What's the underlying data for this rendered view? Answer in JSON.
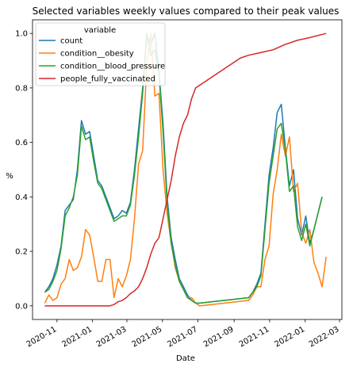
{
  "chart_data": {
    "type": "line",
    "title": "Selected variables weekly values compared to their peak values",
    "xlabel": "Date",
    "ylabel": "%",
    "xlim": [
      "2020-09-20",
      "2022-03-05"
    ],
    "ylim": [
      -0.05,
      1.05
    ],
    "grid": false,
    "legend": {
      "title": "variable",
      "placement": "top-left"
    },
    "xticks": [
      "2020-11",
      "2021-01",
      "2021-03",
      "2021-05",
      "2021-07",
      "2021-09",
      "2021-11",
      "2022-01",
      "2022-03"
    ],
    "yticks": [
      "0.0",
      "0.2",
      "0.4",
      "0.6",
      "0.8",
      "1.0"
    ],
    "series": [
      {
        "name": "count",
        "color": "#1f77b4",
        "points": [
          [
            "2020-10-11",
            0.05
          ],
          [
            "2020-10-18",
            0.07
          ],
          [
            "2020-10-25",
            0.1
          ],
          [
            "2020-11-01",
            0.15
          ],
          [
            "2020-11-08",
            0.22
          ],
          [
            "2020-11-15",
            0.35
          ],
          [
            "2020-11-22",
            0.37
          ],
          [
            "2020-11-29",
            0.39
          ],
          [
            "2020-12-06",
            0.5
          ],
          [
            "2020-12-13",
            0.68
          ],
          [
            "2020-12-20",
            0.63
          ],
          [
            "2020-12-27",
            0.64
          ],
          [
            "2021-01-03",
            0.55
          ],
          [
            "2021-01-10",
            0.46
          ],
          [
            "2021-01-17",
            0.44
          ],
          [
            "2021-01-24",
            0.4
          ],
          [
            "2021-01-31",
            0.36
          ],
          [
            "2021-02-07",
            0.32
          ],
          [
            "2021-02-14",
            0.33
          ],
          [
            "2021-02-21",
            0.35
          ],
          [
            "2021-02-28",
            0.34
          ],
          [
            "2021-03-07",
            0.38
          ],
          [
            "2021-03-14",
            0.5
          ],
          [
            "2021-03-21",
            0.65
          ],
          [
            "2021-03-28",
            0.8
          ],
          [
            "2021-04-04",
            0.99
          ],
          [
            "2021-04-11",
            0.96
          ],
          [
            "2021-04-18",
            1.0
          ],
          [
            "2021-04-25",
            0.86
          ],
          [
            "2021-05-02",
            0.67
          ],
          [
            "2021-05-09",
            0.4
          ],
          [
            "2021-05-16",
            0.25
          ],
          [
            "2021-05-23",
            0.17
          ],
          [
            "2021-05-30",
            0.1
          ],
          [
            "2021-06-06",
            0.07
          ],
          [
            "2021-06-13",
            0.04
          ],
          [
            "2021-06-20",
            0.02
          ],
          [
            "2021-06-27",
            0.01
          ],
          [
            "2021-07-04",
            0.01
          ],
          [
            "2021-09-26",
            0.03
          ],
          [
            "2021-10-03",
            0.05
          ],
          [
            "2021-10-10",
            0.08
          ],
          [
            "2021-10-17",
            0.12
          ],
          [
            "2021-10-24",
            0.3
          ],
          [
            "2021-10-31",
            0.48
          ],
          [
            "2021-11-07",
            0.58
          ],
          [
            "2021-11-14",
            0.71
          ],
          [
            "2021-11-21",
            0.74
          ],
          [
            "2021-11-28",
            0.58
          ],
          [
            "2021-12-05",
            0.44
          ],
          [
            "2021-12-12",
            0.5
          ],
          [
            "2021-12-19",
            0.32
          ],
          [
            "2021-12-26",
            0.26
          ],
          [
            "2022-01-02",
            0.33
          ],
          [
            "2022-01-09",
            0.23
          ],
          [
            "2022-01-16",
            0.28
          ],
          [
            "2022-01-23",
            0.34
          ],
          [
            "2022-01-30",
            0.4
          ]
        ]
      },
      {
        "name": "condition__obesity",
        "color": "#ff7f0e",
        "points": [
          [
            "2020-10-11",
            0.01
          ],
          [
            "2020-10-18",
            0.04
          ],
          [
            "2020-10-25",
            0.02
          ],
          [
            "2020-11-01",
            0.03
          ],
          [
            "2020-11-08",
            0.08
          ],
          [
            "2020-11-15",
            0.1
          ],
          [
            "2020-11-22",
            0.17
          ],
          [
            "2020-11-29",
            0.13
          ],
          [
            "2020-12-06",
            0.14
          ],
          [
            "2020-12-13",
            0.18
          ],
          [
            "2020-12-20",
            0.28
          ],
          [
            "2020-12-27",
            0.26
          ],
          [
            "2021-01-03",
            0.18
          ],
          [
            "2021-01-10",
            0.09
          ],
          [
            "2021-01-17",
            0.09
          ],
          [
            "2021-01-24",
            0.17
          ],
          [
            "2021-01-31",
            0.17
          ],
          [
            "2021-02-07",
            0.03
          ],
          [
            "2021-02-14",
            0.1
          ],
          [
            "2021-02-21",
            0.07
          ],
          [
            "2021-02-28",
            0.11
          ],
          [
            "2021-03-07",
            0.17
          ],
          [
            "2021-03-14",
            0.32
          ],
          [
            "2021-03-21",
            0.52
          ],
          [
            "2021-03-28",
            0.57
          ],
          [
            "2021-04-04",
            0.88
          ],
          [
            "2021-04-11",
            1.0
          ],
          [
            "2021-04-18",
            0.77
          ],
          [
            "2021-04-25",
            0.78
          ],
          [
            "2021-05-02",
            0.5
          ],
          [
            "2021-05-09",
            0.34
          ],
          [
            "2021-05-16",
            0.23
          ],
          [
            "2021-05-23",
            0.14
          ],
          [
            "2021-05-30",
            0.09
          ],
          [
            "2021-06-06",
            0.06
          ],
          [
            "2021-06-13",
            0.03
          ],
          [
            "2021-06-20",
            0.03
          ],
          [
            "2021-06-27",
            0.01
          ],
          [
            "2021-07-04",
            0.0
          ],
          [
            "2021-09-26",
            0.02
          ],
          [
            "2021-10-03",
            0.04
          ],
          [
            "2021-10-10",
            0.07
          ],
          [
            "2021-10-17",
            0.07
          ],
          [
            "2021-10-24",
            0.17
          ],
          [
            "2021-10-31",
            0.22
          ],
          [
            "2021-11-07",
            0.41
          ],
          [
            "2021-11-14",
            0.5
          ],
          [
            "2021-11-21",
            0.63
          ],
          [
            "2021-11-28",
            0.55
          ],
          [
            "2021-12-05",
            0.62
          ],
          [
            "2021-12-12",
            0.42
          ],
          [
            "2021-12-19",
            0.45
          ],
          [
            "2021-12-26",
            0.27
          ],
          [
            "2022-01-02",
            0.23
          ],
          [
            "2022-01-09",
            0.28
          ],
          [
            "2022-01-16",
            0.16
          ],
          [
            "2022-01-23",
            0.12
          ],
          [
            "2022-01-30",
            0.07
          ],
          [
            "2022-02-06",
            0.18
          ]
        ]
      },
      {
        "name": "condition__blood_pressure",
        "color": "#2ca02c",
        "points": [
          [
            "2020-10-11",
            0.05
          ],
          [
            "2020-10-18",
            0.06
          ],
          [
            "2020-10-25",
            0.09
          ],
          [
            "2020-11-01",
            0.13
          ],
          [
            "2020-11-08",
            0.21
          ],
          [
            "2020-11-15",
            0.33
          ],
          [
            "2020-11-22",
            0.36
          ],
          [
            "2020-11-29",
            0.4
          ],
          [
            "2020-12-06",
            0.48
          ],
          [
            "2020-12-13",
            0.66
          ],
          [
            "2020-12-20",
            0.61
          ],
          [
            "2020-12-27",
            0.62
          ],
          [
            "2021-01-03",
            0.53
          ],
          [
            "2021-01-10",
            0.45
          ],
          [
            "2021-01-17",
            0.43
          ],
          [
            "2021-01-24",
            0.39
          ],
          [
            "2021-01-31",
            0.35
          ],
          [
            "2021-02-07",
            0.31
          ],
          [
            "2021-02-14",
            0.32
          ],
          [
            "2021-02-21",
            0.33
          ],
          [
            "2021-02-28",
            0.33
          ],
          [
            "2021-03-07",
            0.37
          ],
          [
            "2021-03-14",
            0.48
          ],
          [
            "2021-03-21",
            0.62
          ],
          [
            "2021-03-28",
            0.78
          ],
          [
            "2021-04-04",
            1.0
          ],
          [
            "2021-04-11",
            0.92
          ],
          [
            "2021-04-18",
            0.94
          ],
          [
            "2021-04-25",
            0.85
          ],
          [
            "2021-05-02",
            0.64
          ],
          [
            "2021-05-09",
            0.38
          ],
          [
            "2021-05-16",
            0.23
          ],
          [
            "2021-05-23",
            0.15
          ],
          [
            "2021-05-30",
            0.09
          ],
          [
            "2021-06-06",
            0.06
          ],
          [
            "2021-06-13",
            0.03
          ],
          [
            "2021-06-20",
            0.02
          ],
          [
            "2021-06-27",
            0.01
          ],
          [
            "2021-07-04",
            0.01
          ],
          [
            "2021-09-26",
            0.03
          ],
          [
            "2021-10-03",
            0.05
          ],
          [
            "2021-10-10",
            0.07
          ],
          [
            "2021-10-17",
            0.11
          ],
          [
            "2021-10-24",
            0.28
          ],
          [
            "2021-10-31",
            0.45
          ],
          [
            "2021-11-07",
            0.55
          ],
          [
            "2021-11-14",
            0.65
          ],
          [
            "2021-11-21",
            0.67
          ],
          [
            "2021-11-28",
            0.57
          ],
          [
            "2021-12-05",
            0.42
          ],
          [
            "2021-12-12",
            0.44
          ],
          [
            "2021-12-19",
            0.29
          ],
          [
            "2021-12-26",
            0.24
          ],
          [
            "2022-01-02",
            0.3
          ],
          [
            "2022-01-09",
            0.22
          ],
          [
            "2022-01-16",
            0.28
          ],
          [
            "2022-01-23",
            0.34
          ],
          [
            "2022-01-30",
            0.4
          ]
        ]
      },
      {
        "name": "people_fully_vaccinated",
        "color": "#d62728",
        "points": [
          [
            "2020-10-11",
            0.0
          ],
          [
            "2020-12-27",
            0.0
          ],
          [
            "2021-01-17",
            0.0
          ],
          [
            "2021-01-31",
            0.0
          ],
          [
            "2021-02-07",
            0.005
          ],
          [
            "2021-02-14",
            0.015
          ],
          [
            "2021-02-21",
            0.02
          ],
          [
            "2021-02-28",
            0.03
          ],
          [
            "2021-03-07",
            0.045
          ],
          [
            "2021-03-14",
            0.055
          ],
          [
            "2021-03-21",
            0.07
          ],
          [
            "2021-03-28",
            0.1
          ],
          [
            "2021-04-04",
            0.14
          ],
          [
            "2021-04-11",
            0.19
          ],
          [
            "2021-04-18",
            0.23
          ],
          [
            "2021-04-25",
            0.25
          ],
          [
            "2021-05-02",
            0.32
          ],
          [
            "2021-05-09",
            0.39
          ],
          [
            "2021-05-16",
            0.46
          ],
          [
            "2021-05-23",
            0.55
          ],
          [
            "2021-05-30",
            0.62
          ],
          [
            "2021-06-06",
            0.67
          ],
          [
            "2021-06-13",
            0.7
          ],
          [
            "2021-06-20",
            0.76
          ],
          [
            "2021-06-27",
            0.8
          ],
          [
            "2021-07-11",
            0.82
          ],
          [
            "2021-08-01",
            0.85
          ],
          [
            "2021-08-22",
            0.88
          ],
          [
            "2021-09-12",
            0.91
          ],
          [
            "2021-09-26",
            0.92
          ],
          [
            "2021-10-17",
            0.93
          ],
          [
            "2021-11-07",
            0.94
          ],
          [
            "2021-11-28",
            0.96
          ],
          [
            "2021-12-19",
            0.975
          ],
          [
            "2022-01-09",
            0.985
          ],
          [
            "2022-02-06",
            1.0
          ]
        ]
      }
    ]
  }
}
